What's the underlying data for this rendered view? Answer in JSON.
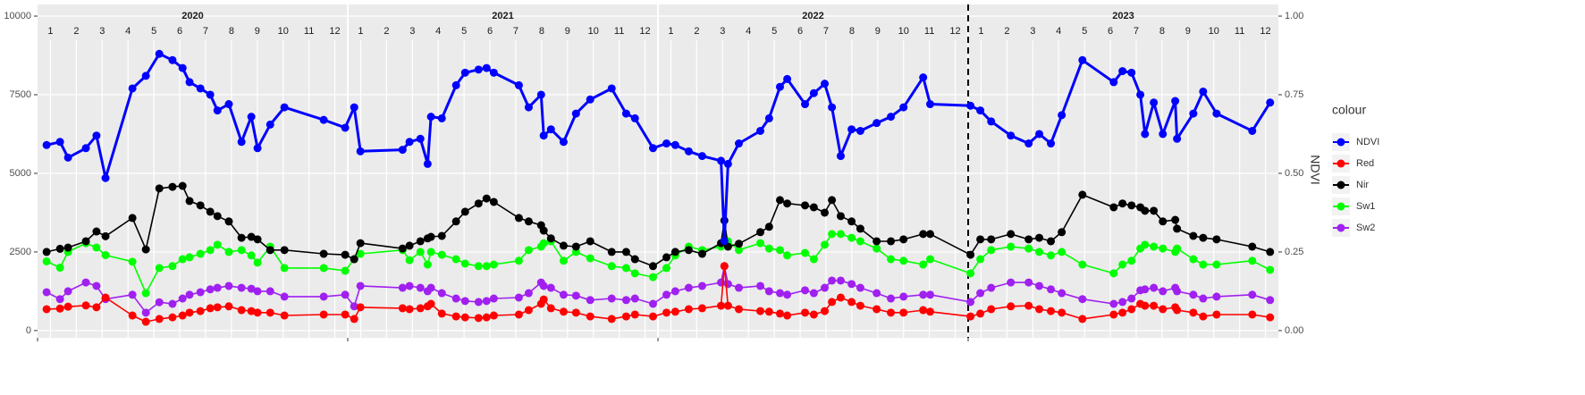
{
  "chart_data": {
    "type": "line",
    "y2_label": "NDVI",
    "legend_title": "colour",
    "legend": "right",
    "grid": true,
    "xlim": [
      0,
      48
    ],
    "facets": [
      {
        "label": "2020",
        "xlim": [
          0,
          12
        ]
      },
      {
        "label": "2021",
        "xlim": [
          12,
          24
        ]
      },
      {
        "label": "2022",
        "xlim": [
          24,
          36
        ]
      },
      {
        "label": "2023",
        "xlim": [
          36,
          48
        ]
      }
    ],
    "vline": 36,
    "xticks": [
      {
        "value": 0.5,
        "label": "1"
      },
      {
        "value": 1.5,
        "label": "2"
      },
      {
        "value": 2.5,
        "label": "3"
      },
      {
        "value": 3.5,
        "label": "4"
      },
      {
        "value": 4.5,
        "label": "5"
      },
      {
        "value": 5.5,
        "label": "6"
      },
      {
        "value": 6.5,
        "label": "7"
      },
      {
        "value": 7.5,
        "label": "8"
      },
      {
        "value": 8.5,
        "label": "9"
      },
      {
        "value": 9.5,
        "label": "10"
      },
      {
        "value": 10.5,
        "label": "11"
      },
      {
        "value": 11.5,
        "label": "12"
      },
      {
        "value": 12.5,
        "label": "1"
      },
      {
        "value": 13.5,
        "label": "2"
      },
      {
        "value": 14.5,
        "label": "3"
      },
      {
        "value": 15.5,
        "label": "4"
      },
      {
        "value": 16.5,
        "label": "5"
      },
      {
        "value": 17.5,
        "label": "6"
      },
      {
        "value": 18.5,
        "label": "7"
      },
      {
        "value": 19.5,
        "label": "8"
      },
      {
        "value": 20.5,
        "label": "9"
      },
      {
        "value": 21.5,
        "label": "10"
      },
      {
        "value": 22.5,
        "label": "11"
      },
      {
        "value": 23.5,
        "label": "12"
      },
      {
        "value": 24.5,
        "label": "1"
      },
      {
        "value": 25.5,
        "label": "2"
      },
      {
        "value": 26.5,
        "label": "3"
      },
      {
        "value": 27.5,
        "label": "4"
      },
      {
        "value": 28.5,
        "label": "5"
      },
      {
        "value": 29.5,
        "label": "6"
      },
      {
        "value": 30.5,
        "label": "7"
      },
      {
        "value": 31.5,
        "label": "8"
      },
      {
        "value": 32.5,
        "label": "9"
      },
      {
        "value": 33.5,
        "label": "10"
      },
      {
        "value": 34.5,
        "label": "11"
      },
      {
        "value": 35.5,
        "label": "12"
      },
      {
        "value": 36.5,
        "label": "1"
      },
      {
        "value": 37.5,
        "label": "2"
      },
      {
        "value": 38.5,
        "label": "3"
      },
      {
        "value": 39.5,
        "label": "4"
      },
      {
        "value": 40.5,
        "label": "5"
      },
      {
        "value": 41.5,
        "label": "6"
      },
      {
        "value": 42.5,
        "label": "7"
      },
      {
        "value": 43.5,
        "label": "8"
      },
      {
        "value": 44.5,
        "label": "9"
      },
      {
        "value": 45.5,
        "label": "10"
      },
      {
        "value": 46.5,
        "label": "11"
      },
      {
        "value": 47.5,
        "label": "12"
      }
    ],
    "ylim": [
      -230,
      10370
    ],
    "yticks": [
      0,
      2500,
      5000,
      7500,
      10000
    ],
    "y2lim": [
      -0.023,
      1.037
    ],
    "y2ticks": [
      {
        "value": 0,
        "label": "0.00"
      },
      {
        "value": 0.25,
        "label": "0.25"
      },
      {
        "value": 0.5,
        "label": "0.50"
      },
      {
        "value": 0.75,
        "label": "0.75"
      },
      {
        "value": 1,
        "label": "1.00"
      }
    ],
    "x": [
      0.35,
      0.87,
      1.18,
      1.87,
      2.28,
      2.63,
      3.67,
      4.19,
      4.71,
      5.22,
      5.61,
      5.88,
      6.3,
      6.68,
      6.96,
      7.4,
      7.89,
      8.27,
      8.51,
      9.0,
      9.55,
      11.07,
      11.9,
      12.25,
      12.49,
      14.12,
      14.39,
      14.81,
      15.09,
      15.22,
      15.64,
      16.19,
      16.54,
      17.06,
      17.37,
      17.65,
      18.62,
      19.0,
      19.48,
      19.58,
      19.86,
      20.35,
      20.83,
      21.38,
      22.21,
      22.77,
      23.11,
      23.81,
      24.33,
      24.67,
      25.19,
      25.71,
      26.44,
      26.57,
      26.71,
      27.13,
      27.96,
      28.3,
      28.72,
      29.0,
      29.69,
      30.03,
      30.45,
      30.73,
      31.07,
      31.49,
      31.83,
      32.46,
      33.01,
      33.5,
      34.26,
      34.53,
      36.09,
      36.47,
      36.89,
      37.65,
      38.34,
      38.75,
      39.2,
      39.62,
      40.42,
      41.63,
      41.97,
      42.32,
      42.66,
      42.84,
      43.18,
      43.53,
      44.01,
      44.08,
      44.71,
      45.09,
      45.61,
      46.99,
      47.68
    ],
    "series": [
      {
        "name": "NDVI",
        "color": "#0000ff",
        "axis": "y2",
        "values": [
          0.59,
          0.6,
          0.55,
          0.58,
          0.62,
          0.485,
          0.77,
          0.81,
          0.88,
          0.86,
          0.835,
          0.79,
          0.77,
          0.75,
          0.7,
          0.72,
          0.6,
          0.68,
          0.58,
          0.655,
          0.71,
          0.67,
          0.645,
          0.71,
          0.57,
          0.575,
          0.6,
          0.61,
          0.53,
          0.68,
          0.675,
          0.78,
          0.82,
          0.83,
          0.835,
          0.82,
          0.78,
          0.71,
          0.75,
          0.62,
          0.64,
          0.6,
          0.69,
          0.735,
          0.77,
          0.69,
          0.675,
          0.58,
          0.595,
          0.59,
          0.57,
          0.555,
          0.54,
          0.285,
          0.53,
          0.595,
          0.635,
          0.675,
          0.775,
          0.8,
          0.72,
          0.755,
          0.785,
          0.71,
          0.555,
          0.64,
          0.635,
          0.66,
          0.68,
          0.71,
          0.805,
          0.72,
          0.715,
          0.7,
          0.665,
          0.62,
          0.595,
          0.625,
          0.595,
          0.685,
          0.86,
          0.79,
          0.825,
          0.82,
          0.75,
          0.625,
          0.725,
          0.625,
          0.73,
          0.61,
          0.69,
          0.76,
          0.69,
          0.635,
          0.725
        ]
      },
      {
        "name": "Red",
        "color": "#ff0000",
        "values": [
          680,
          700,
          760,
          800,
          740,
          1050,
          480,
          280,
          370,
          420,
          480,
          570,
          620,
          710,
          740,
          770,
          650,
          620,
          570,
          570,
          480,
          510,
          510,
          370,
          740,
          710,
          680,
          710,
          770,
          850,
          540,
          450,
          420,
          400,
          420,
          480,
          510,
          650,
          850,
          990,
          710,
          600,
          570,
          450,
          370,
          450,
          510,
          450,
          570,
          600,
          680,
          710,
          790,
          2050,
          790,
          680,
          620,
          600,
          540,
          480,
          570,
          510,
          620,
          910,
          1050,
          910,
          790,
          680,
          570,
          570,
          650,
          600,
          450,
          540,
          680,
          770,
          790,
          680,
          620,
          570,
          370,
          510,
          570,
          680,
          850,
          790,
          790,
          680,
          740,
          650,
          570,
          450,
          510,
          510,
          420
        ]
      },
      {
        "name": "Nir",
        "color": "#000000",
        "values": [
          2500,
          2600,
          2640,
          2840,
          3150,
          3000,
          3580,
          2580,
          4520,
          4570,
          4600,
          4120,
          3980,
          3780,
          3640,
          3470,
          2950,
          2980,
          2900,
          2560,
          2560,
          2440,
          2410,
          2270,
          2780,
          2610,
          2700,
          2840,
          2930,
          2980,
          3010,
          3470,
          3780,
          4040,
          4200,
          4090,
          3580,
          3470,
          3350,
          3180,
          2930,
          2700,
          2670,
          2840,
          2500,
          2500,
          2270,
          2050,
          2330,
          2500,
          2560,
          2440,
          2780,
          3500,
          2670,
          2760,
          3130,
          3300,
          4150,
          4040,
          3980,
          3920,
          3750,
          4150,
          3640,
          3470,
          3240,
          2840,
          2840,
          2900,
          3070,
          3070,
          2410,
          2900,
          2900,
          3070,
          2900,
          2950,
          2840,
          3130,
          4320,
          3920,
          4040,
          3980,
          3920,
          3810,
          3810,
          3470,
          3520,
          3240,
          3010,
          2950,
          2900,
          2670,
          2500
        ]
      },
      {
        "name": "Sw1",
        "color": "#00ff00",
        "values": [
          2200,
          2000,
          2500,
          2780,
          2640,
          2400,
          2190,
          1190,
          1990,
          2050,
          2270,
          2330,
          2440,
          2560,
          2730,
          2500,
          2560,
          2390,
          2160,
          2670,
          1990,
          1990,
          1900,
          2270,
          2440,
          2560,
          2240,
          2500,
          2100,
          2500,
          2410,
          2270,
          2130,
          2050,
          2050,
          2100,
          2220,
          2560,
          2670,
          2780,
          2840,
          2220,
          2500,
          2300,
          2050,
          1990,
          1820,
          1700,
          1990,
          2390,
          2670,
          2560,
          2670,
          2780,
          2840,
          2560,
          2780,
          2610,
          2560,
          2390,
          2470,
          2270,
          2730,
          3070,
          3070,
          2950,
          2840,
          2610,
          2270,
          2220,
          2100,
          2270,
          1820,
          2270,
          2560,
          2670,
          2610,
          2500,
          2390,
          2500,
          2100,
          1820,
          2100,
          2220,
          2610,
          2730,
          2670,
          2610,
          2500,
          2610,
          2270,
          2100,
          2100,
          2220,
          1930
        ]
      },
      {
        "name": "Sw2",
        "color": "#a020f0",
        "values": [
          1220,
          1000,
          1250,
          1530,
          1420,
          1000,
          1140,
          570,
          900,
          850,
          1020,
          1140,
          1220,
          1310,
          1360,
          1420,
          1360,
          1330,
          1250,
          1250,
          1080,
          1080,
          1140,
          770,
          1420,
          1360,
          1420,
          1360,
          1250,
          1360,
          1190,
          1020,
          940,
          910,
          940,
          1020,
          1050,
          1190,
          1530,
          1420,
          1360,
          1140,
          1110,
          970,
          1020,
          970,
          1020,
          850,
          1140,
          1250,
          1360,
          1420,
          1530,
          2050,
          1480,
          1360,
          1420,
          1250,
          1190,
          1140,
          1280,
          1190,
          1360,
          1590,
          1590,
          1480,
          1360,
          1190,
          1020,
          1080,
          1140,
          1140,
          910,
          1190,
          1360,
          1530,
          1530,
          1420,
          1310,
          1190,
          1000,
          850,
          910,
          1020,
          1280,
          1310,
          1360,
          1250,
          1360,
          1250,
          1140,
          1020,
          1080,
          1140,
          970
        ]
      }
    ]
  }
}
